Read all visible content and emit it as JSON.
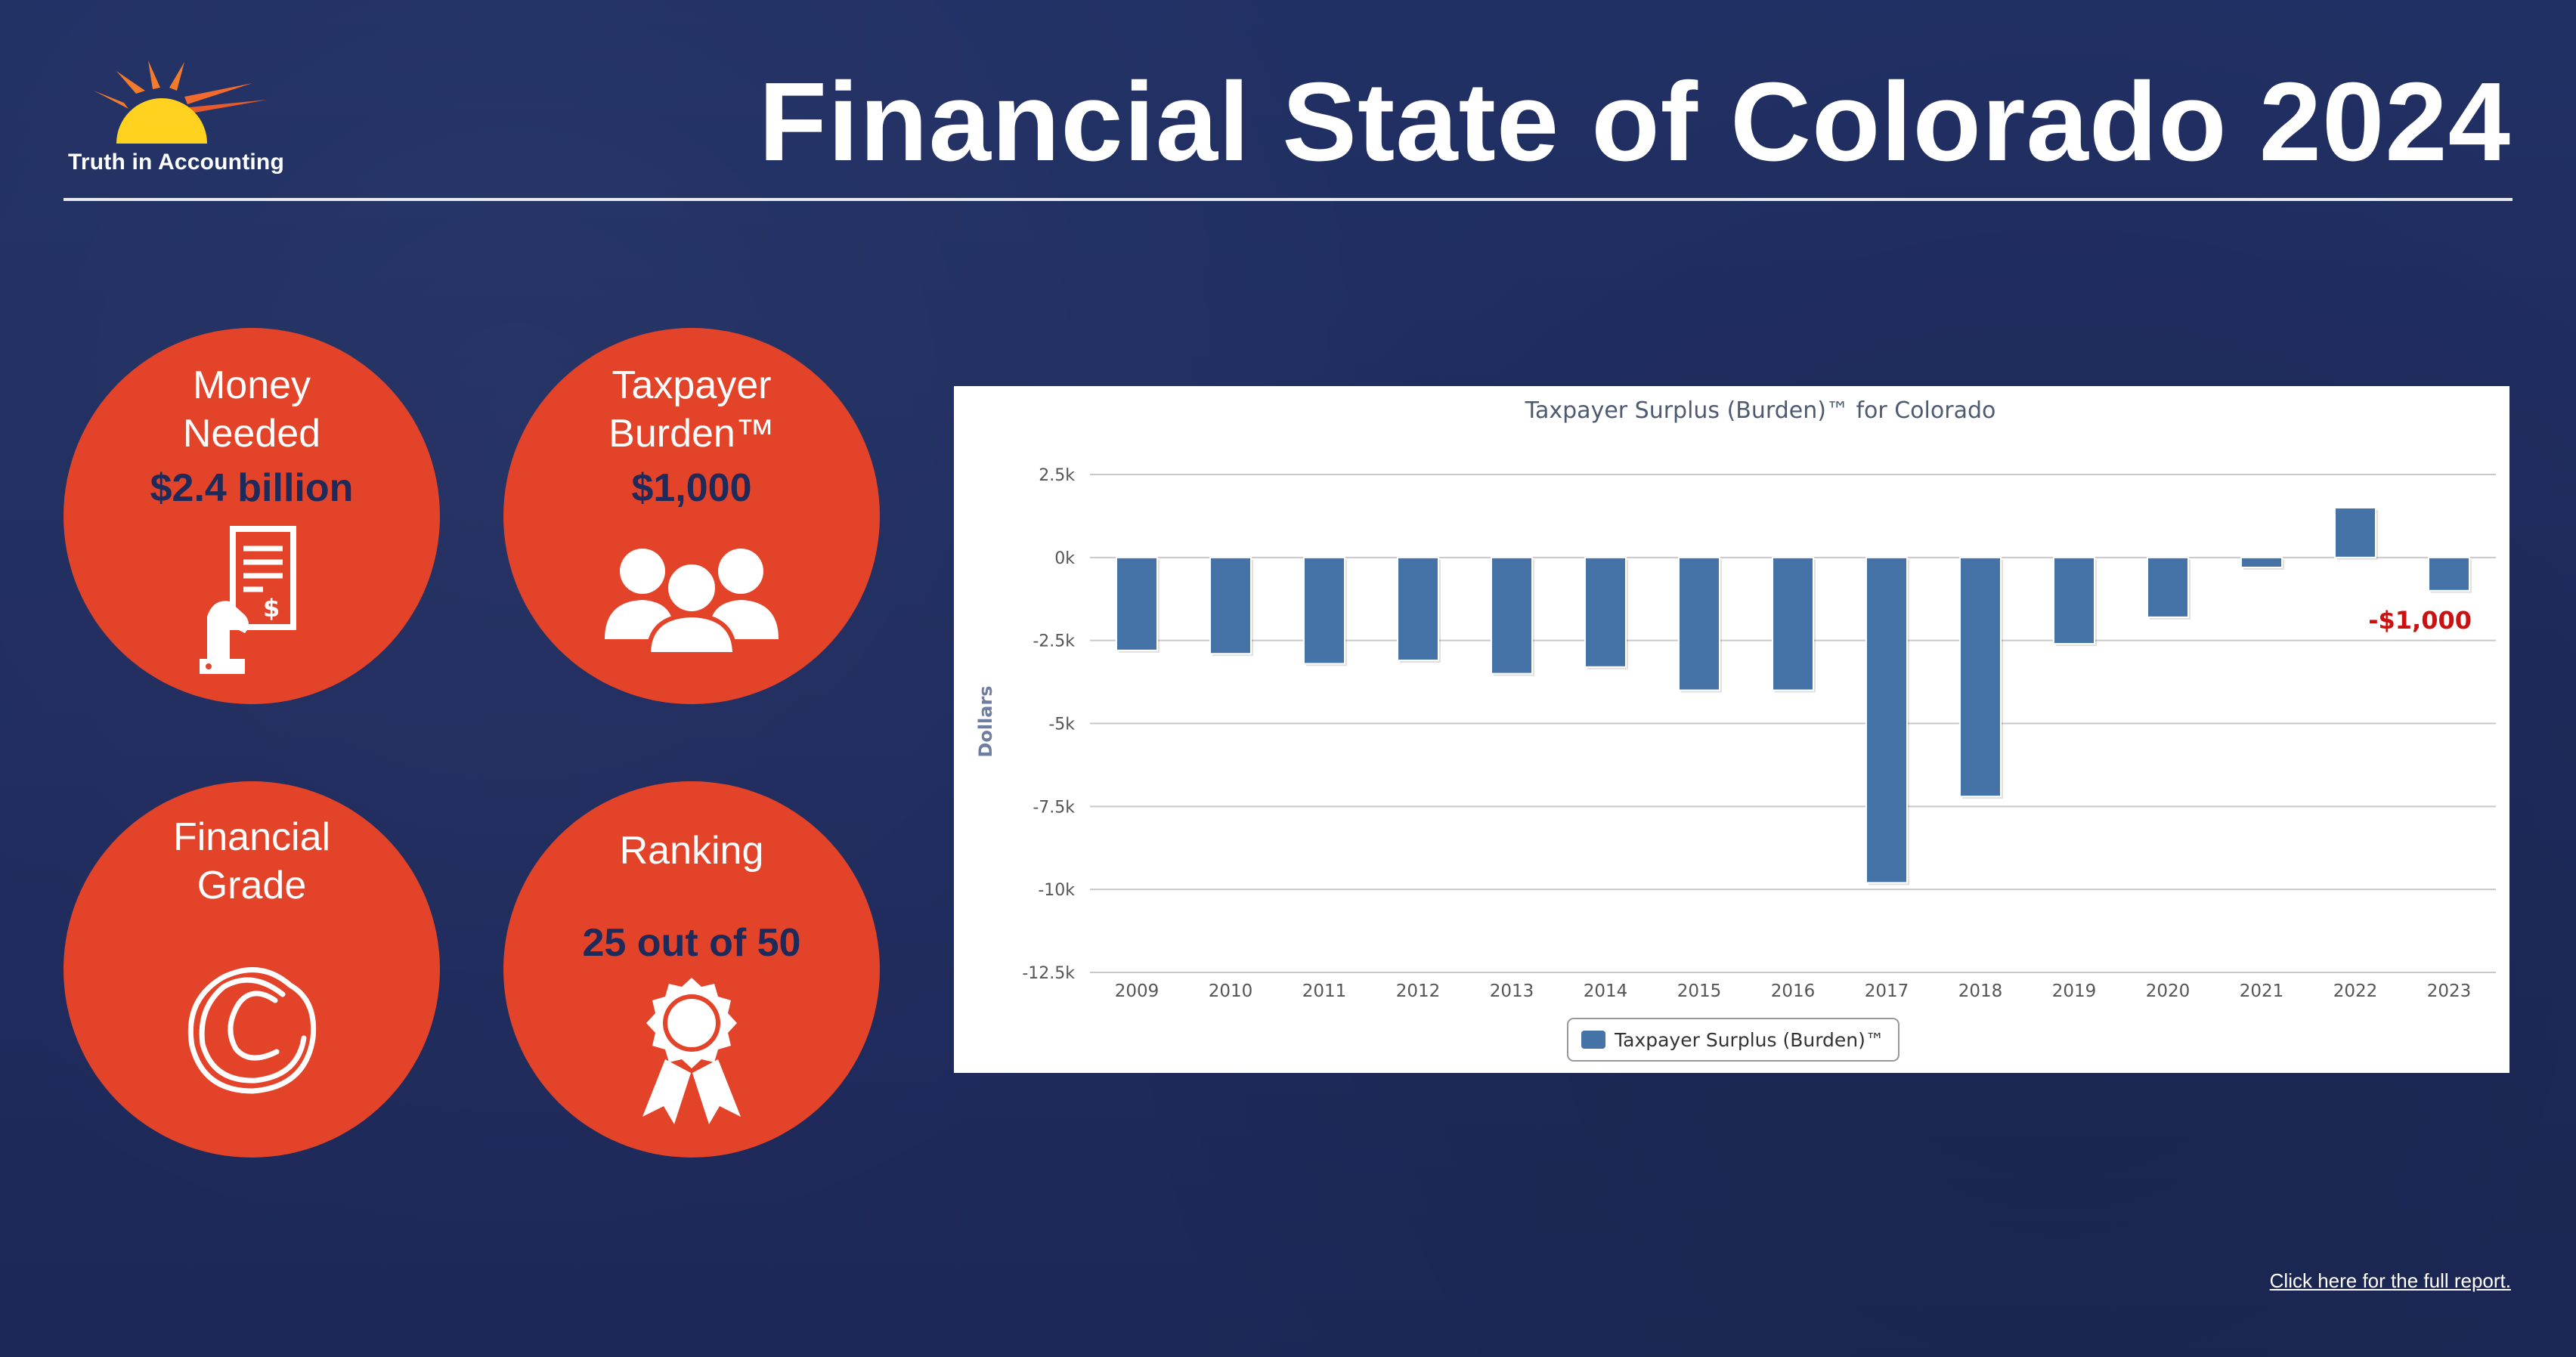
{
  "brand": {
    "name": "Truth in Accounting",
    "colors": {
      "background": "#1f2a5e",
      "accent": "#e24329",
      "bar": "#4572a7",
      "negative_label": "#cc1111"
    }
  },
  "page": {
    "title": "Financial State of Colorado 2024"
  },
  "stats": {
    "money_needed": {
      "label_line1": "Money",
      "label_line2": "Needed",
      "value": "$2.4 billion",
      "icon": "bill-in-hand-icon"
    },
    "taxpayer_burden": {
      "label_line1": "Taxpayer",
      "label_line2": "Burden™",
      "value": "$1,000",
      "icon": "people-group-icon"
    },
    "financial_grade": {
      "label_line1": "Financial",
      "label_line2": "Grade",
      "value": "C",
      "icon": "grade-c-icon"
    },
    "ranking": {
      "label": "Ranking",
      "value": "25 out of 50",
      "icon": "award-ribbon-icon"
    }
  },
  "chart_data": {
    "type": "bar",
    "title": "Taxpayer Surplus (Burden)™ for Colorado",
    "xlabel": "",
    "ylabel": "Dollars",
    "ylim": [
      -12500,
      2500
    ],
    "yticks": [
      2500,
      0,
      -2500,
      -5000,
      -7500,
      -10000,
      -12500
    ],
    "ytick_labels": [
      "2.5k",
      "0k",
      "-2.5k",
      "-5k",
      "-7.5k",
      "-10k",
      "-12.5k"
    ],
    "grid": true,
    "legend_position": "bottom-center",
    "categories": [
      "2009",
      "2010",
      "2011",
      "2012",
      "2013",
      "2014",
      "2015",
      "2016",
      "2017",
      "2018",
      "2019",
      "2020",
      "2021",
      "2022",
      "2023"
    ],
    "series": [
      {
        "name": "Taxpayer Surplus (Burden)™",
        "values": [
          -2800,
          -2900,
          -3200,
          -3100,
          -3500,
          -3300,
          -4000,
          -4000,
          -9800,
          -7200,
          -2600,
          -1800,
          -300,
          1500,
          -1000
        ]
      }
    ],
    "annotations": [
      {
        "category": "2023",
        "text": "-$1,000"
      }
    ]
  },
  "footer": {
    "link_text": "Click here for the full report."
  }
}
